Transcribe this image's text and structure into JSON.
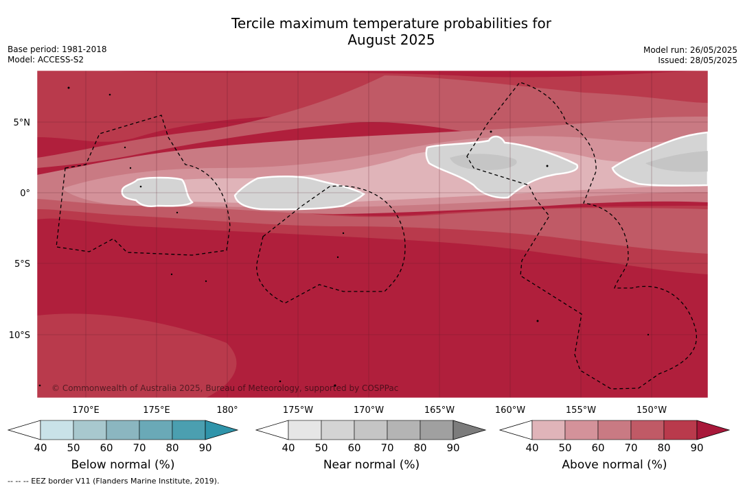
{
  "title": {
    "line1": "Tercile maximum temperature probabilities for",
    "line2": "August 2025"
  },
  "meta_left": {
    "base_period": "Base period: 1981-2018",
    "model": "Model: ACCESS-S2"
  },
  "meta_right": {
    "model_run": "Model run: 26/05/2025",
    "issued": "Issued: 28/05/2025"
  },
  "map": {
    "lon_labels": [
      "170°E",
      "175°E",
      "180°",
      "175°W",
      "170°W",
      "165°W",
      "160°W",
      "155°W",
      "150°W"
    ],
    "lat_labels": [
      "5°N",
      "0°",
      "5°S",
      "10°S"
    ],
    "copyright": "© Commonwealth of Australia 2025, Bureau of Meteorology, supported by COSPPac"
  },
  "colorbars": {
    "ticks": [
      "40",
      "50",
      "60",
      "70",
      "80",
      "90"
    ],
    "below": {
      "label": "Below normal (%)",
      "colors": [
        "#ffffff",
        "#c9e2e8",
        "#a8c8ce",
        "#8bb6c0",
        "#6aa9b7",
        "#4b9fb0",
        "#2f94aa"
      ]
    },
    "near": {
      "label": "Near normal (%)",
      "colors": [
        "#ffffff",
        "#e6e6e6",
        "#d4d4d4",
        "#c5c5c5",
        "#b4b4b4",
        "#a0a0a0",
        "#7c7c7c"
      ]
    },
    "above": {
      "label": "Above normal (%)",
      "colors": [
        "#ffffff",
        "#e0b4b9",
        "#d4929a",
        "#c97a83",
        "#c05a66",
        "#b93a4c",
        "#a8183a"
      ]
    }
  },
  "footer": {
    "legend_text": "--  --  -- EEZ border V11 (Flanders Marine Institute, 2019)."
  }
}
